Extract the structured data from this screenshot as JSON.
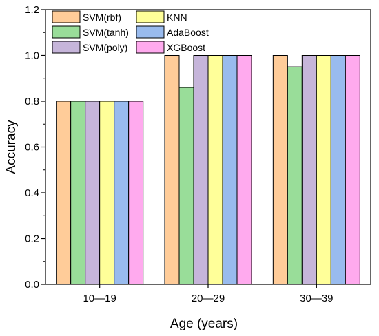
{
  "chart_data": {
    "type": "bar",
    "title": "",
    "xlabel": "Age (years)",
    "ylabel": "Accuracy",
    "categories": [
      "10—19",
      "20—29",
      "30—39"
    ],
    "ylim": [
      0,
      1.2
    ],
    "yticks": [
      "0.0",
      "0.2",
      "0.4",
      "0.6",
      "0.8",
      "1.0",
      "1.2"
    ],
    "grid": false,
    "legend_position": "top-left",
    "series": [
      {
        "name": "SVM(rbf)",
        "color": "#FFCC99",
        "values": [
          0.8,
          1.0,
          1.0
        ]
      },
      {
        "name": "SVM(tanh)",
        "color": "#99DD99",
        "values": [
          0.8,
          0.86,
          0.95
        ]
      },
      {
        "name": "SVM(poly)",
        "color": "#C6B5DA",
        "values": [
          0.8,
          1.0,
          1.0
        ]
      },
      {
        "name": "KNN",
        "color": "#FFFF99",
        "values": [
          0.8,
          1.0,
          1.0
        ]
      },
      {
        "name": "AdaBoost",
        "color": "#99BBEE",
        "values": [
          0.8,
          1.0,
          1.0
        ]
      },
      {
        "name": "XGBoost",
        "color": "#FFAAEE",
        "values": [
          0.8,
          1.0,
          1.0
        ]
      }
    ]
  }
}
